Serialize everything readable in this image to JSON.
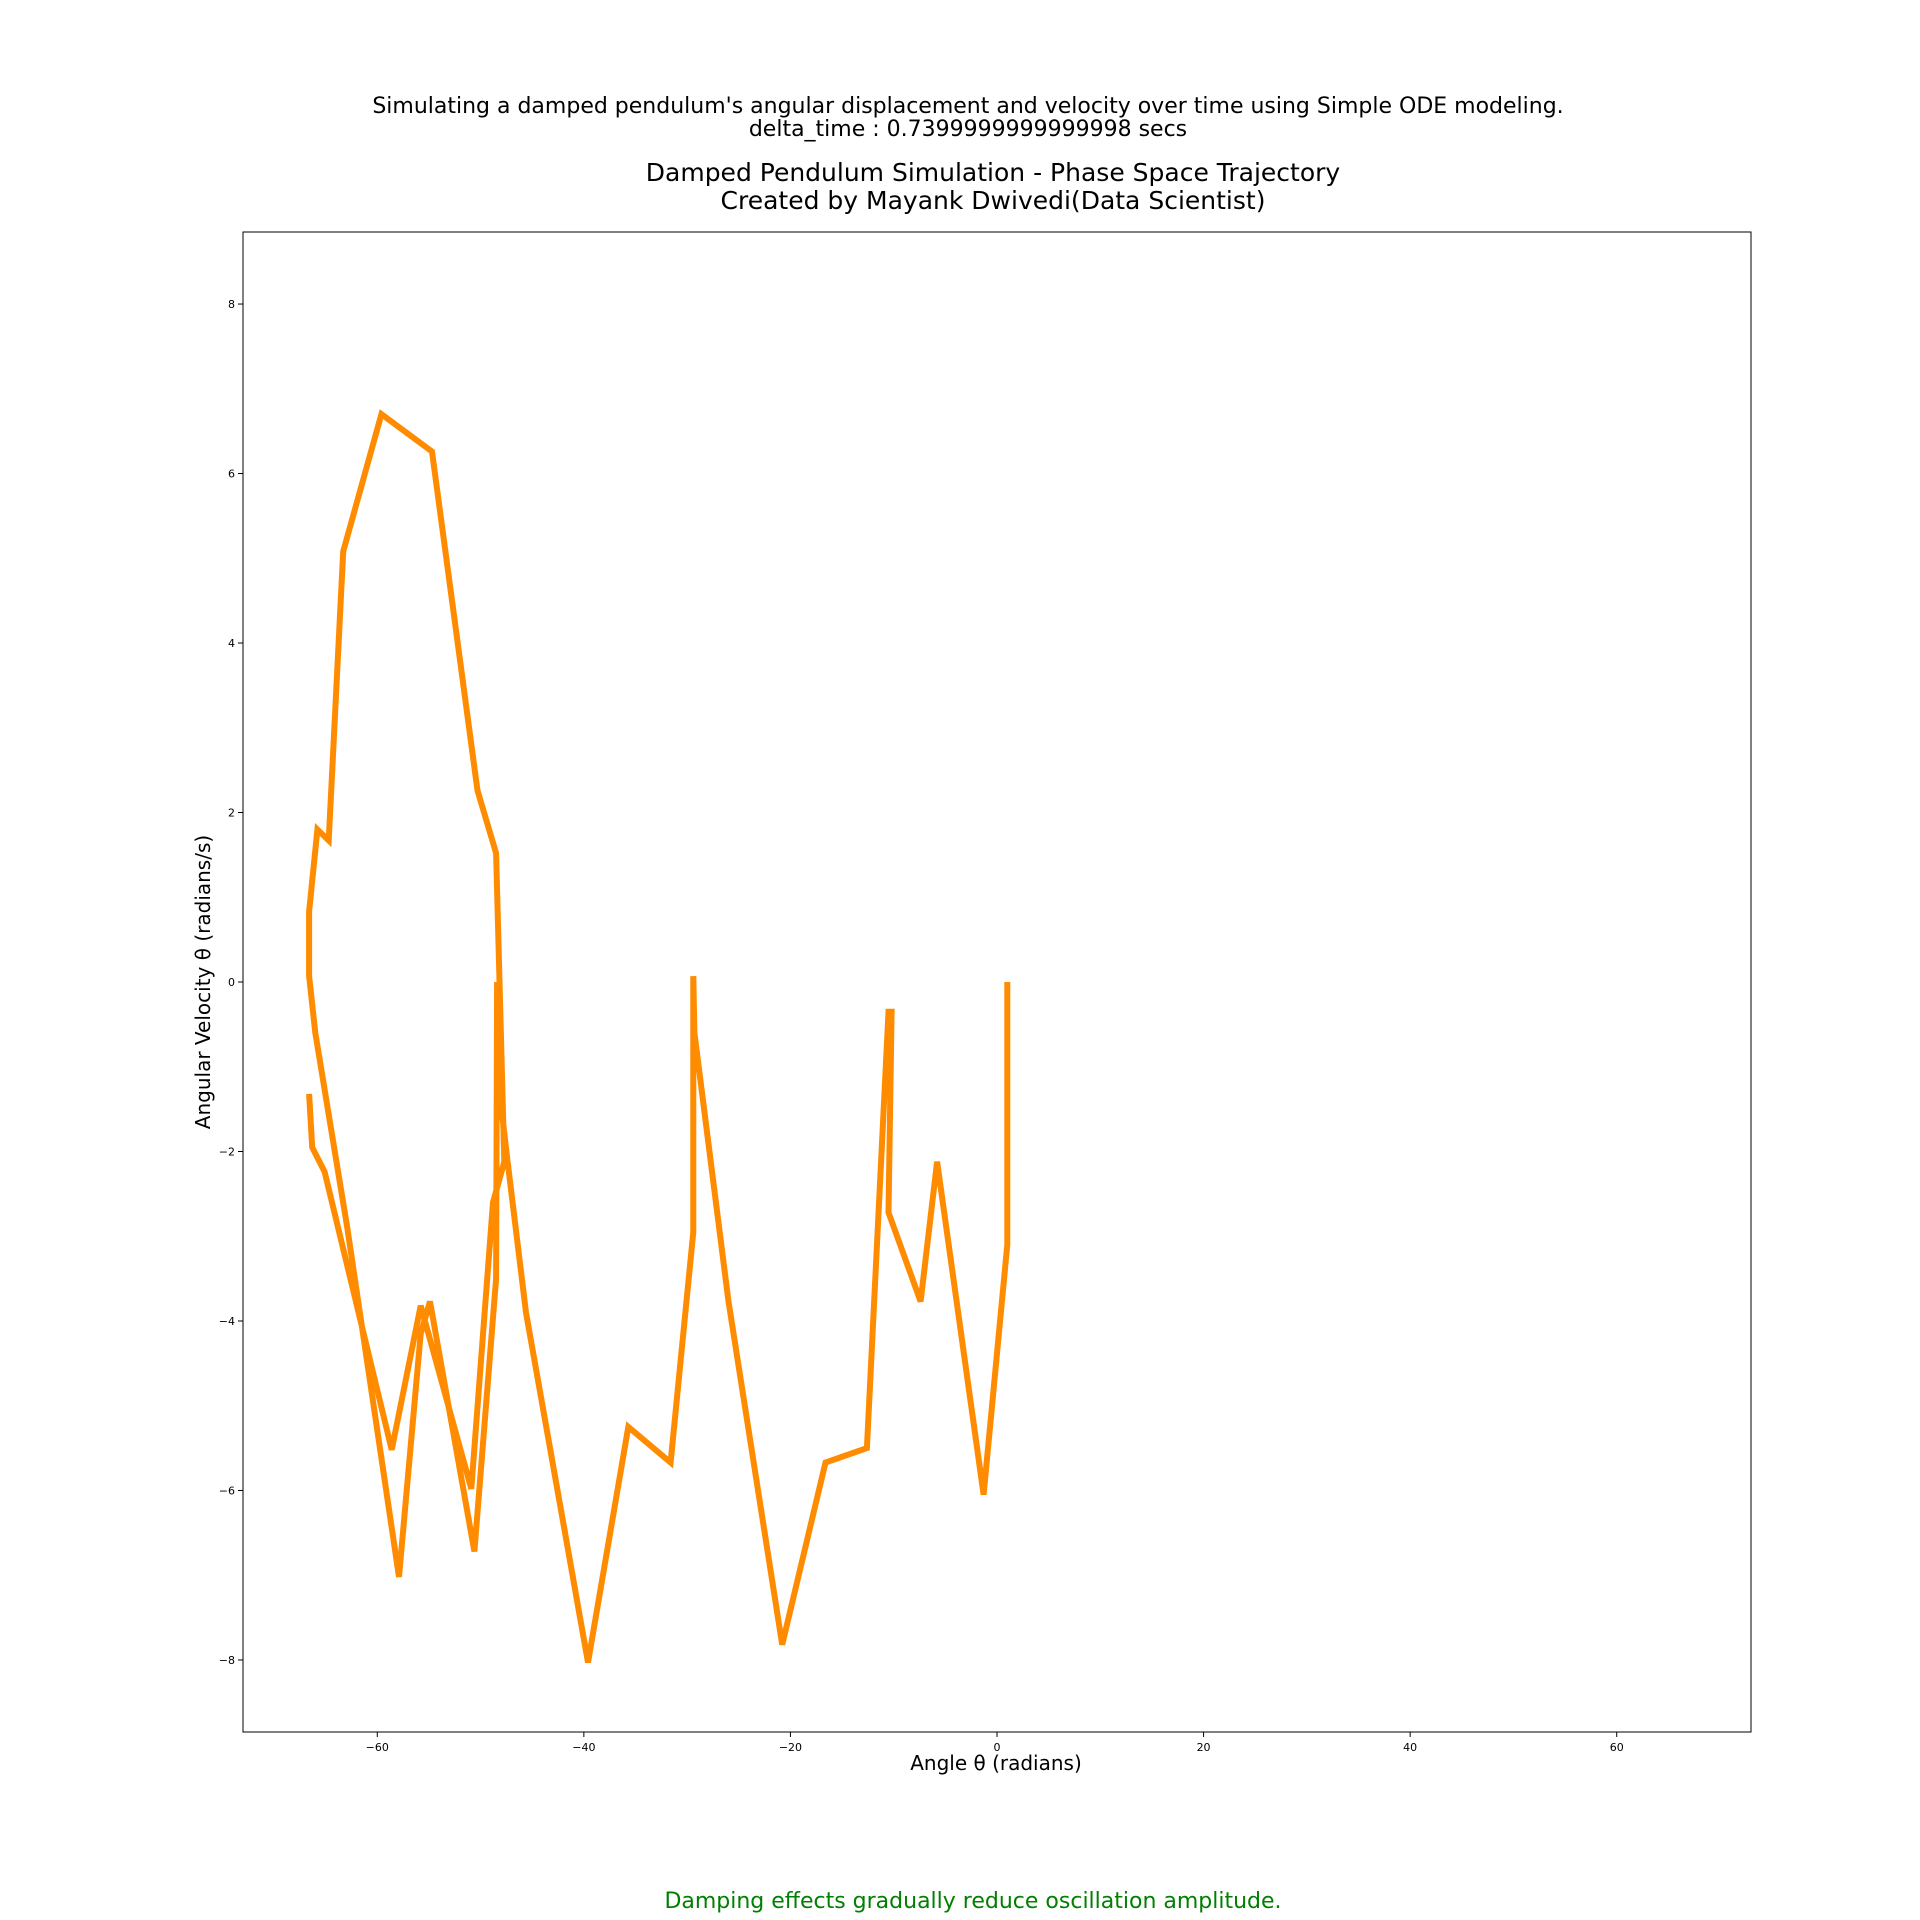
{
  "chart_data": {
    "type": "line",
    "suptitle": [
      "Simulating a damped pendulum's angular displacement and velocity over time using Simple ODE modeling.",
      "delta_time : 0.7399999999999998 secs"
    ],
    "title": [
      "Damped Pendulum Simulation - Phase Space Trajectory",
      "Created by Mayank Dwivedi(Data Scientist)"
    ],
    "xlabel": "Angle θ (radians)",
    "ylabel": "Angular Velocity θ (radians/s)",
    "xlim": [
      -73,
      73
    ],
    "ylim": [
      -8.85,
      8.85
    ],
    "xticks": [
      -60,
      -40,
      -20,
      0,
      20,
      40,
      60
    ],
    "yticks": [
      -8,
      -6,
      -4,
      -2,
      0,
      2,
      4,
      6,
      8
    ],
    "grid": false,
    "line_color": "#ff8c00",
    "caption": "Damping effects gradually reduce oscillation amplitude.",
    "caption_color": "#008000",
    "series": [
      {
        "x": [
          1.0,
          1.0,
          1.0,
          -1.3,
          -5.8,
          -7.4,
          -10.5,
          -10.2,
          -10.5,
          -12.6,
          -16.6,
          -20.8,
          -26.0,
          -29.3,
          -29.4,
          -29.4,
          -31.6,
          -35.7,
          -39.6,
          -45.6,
          -47.4,
          -48.4,
          -48.4,
          -48.5,
          -50.6,
          -54.9,
          -55.8,
          -57.9,
          -62.9,
          -66.0,
          -66.6,
          -66.6,
          -65.8,
          -64.7,
          -63.3,
          -59.6,
          -54.7,
          -50.3,
          -48.5,
          -47.7,
          -48.8,
          -50.9,
          -55.8,
          -58.6,
          -65.1,
          -66.3,
          -66.6
        ],
        "y": [
          0.0,
          -3.1,
          -3.1,
          -6.05,
          -2.12,
          -3.77,
          -2.72,
          -0.35,
          -0.35,
          -5.5,
          -5.67,
          -7.82,
          -3.77,
          -0.6,
          0.07,
          -2.95,
          -5.67,
          -5.25,
          -8.03,
          -3.9,
          -2.1,
          -1.05,
          0.0,
          -3.5,
          -6.72,
          -3.77,
          -4.15,
          -7.02,
          -2.9,
          -0.6,
          0.07,
          0.83,
          1.8,
          1.67,
          5.08,
          6.7,
          6.26,
          2.26,
          1.52,
          -2.12,
          -2.6,
          -5.98,
          -3.82,
          -5.52,
          -2.24,
          -1.95,
          -1.32
        ]
      }
    ]
  }
}
